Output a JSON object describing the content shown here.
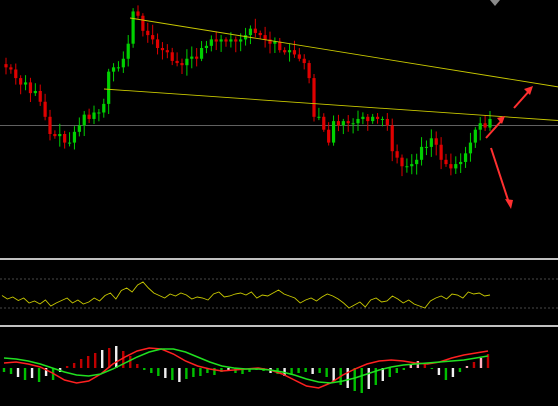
{
  "colors": {
    "background": "#000000",
    "bull": "#00d000",
    "bear": "#e00000",
    "trendline": "#c8c800",
    "panel_separator": "#c0c0c0",
    "reference_line": "#808080",
    "oscillator_line": "#c8c800",
    "signal_red": "#ff2020",
    "signal_green": "#20e020",
    "hist_bull": "#00c000",
    "hist_bear": "#c00000",
    "hist_pale": "#f0f0f0",
    "hist_pink": "#ffb0c0",
    "arrow": "#ff3030"
  },
  "icons": {
    "forecast_up": "arrow-up-right-icon",
    "forecast_down": "arrow-down-right-icon"
  },
  "chart_data": [
    {
      "type": "candlestick",
      "panel": "price",
      "title": "",
      "xlabel": "",
      "ylabel": "",
      "ylim": [
        0,
        100
      ],
      "grid": false,
      "reference_level": 44,
      "closes": [
        71,
        70,
        66,
        63,
        64,
        59,
        60,
        55,
        48,
        40,
        39,
        40,
        36,
        36,
        41,
        44,
        49,
        47,
        50,
        50,
        54,
        69,
        71,
        71,
        75,
        82,
        97,
        95,
        88,
        86,
        84,
        80,
        79,
        78,
        74,
        73,
        72,
        75,
        76,
        75,
        80,
        81,
        84,
        83,
        84,
        83,
        84,
        83,
        84,
        86,
        89,
        87,
        86,
        84,
        82,
        83,
        79,
        78,
        79,
        77,
        75,
        73,
        66,
        48,
        48,
        42,
        36,
        46,
        44,
        46,
        45,
        45,
        47,
        48,
        46,
        48,
        47,
        47,
        44,
        32,
        29,
        25,
        25,
        26,
        28,
        34,
        34,
        38,
        35,
        28,
        26,
        24,
        26,
        27,
        31,
        36,
        42,
        45,
        43,
        47
      ],
      "trendlines": [
        {
          "from": [
            0,
            94
          ],
          "to": [
            140,
            52
          ]
        },
        {
          "from": [
            0,
            64
          ],
          "to": [
            140,
            42
          ]
        }
      ]
    },
    {
      "type": "line",
      "panel": "oscillator",
      "ylim": [
        0,
        100
      ],
      "levels": [
        70,
        30
      ],
      "values": [
        45,
        38,
        42,
        35,
        40,
        30,
        34,
        28,
        36,
        24,
        30,
        35,
        40,
        30,
        36,
        28,
        32,
        40,
        34,
        45,
        50,
        38,
        55,
        60,
        52,
        66,
        72,
        60,
        50,
        45,
        40,
        48,
        44,
        50,
        46,
        38,
        42,
        40,
        36,
        48,
        52,
        42,
        44,
        48,
        50,
        46,
        52,
        40,
        46,
        44,
        50,
        56,
        48,
        44,
        40,
        30,
        36,
        40,
        34,
        42,
        48,
        44,
        38,
        30,
        20,
        26,
        32,
        22,
        36,
        40,
        32,
        34,
        44,
        38,
        30,
        36,
        28,
        24,
        20,
        34,
        40,
        44,
        38,
        48,
        46,
        40,
        52,
        48,
        50,
        44,
        46
      ],
      "series": [
        {
          "name": ""
        }
      ]
    },
    {
      "type": "bar+line",
      "panel": "macd",
      "ylim": [
        -60,
        60
      ],
      "histogram": [
        -8,
        -12,
        -18,
        -24,
        -20,
        -28,
        -16,
        -24,
        -8,
        4,
        10,
        18,
        24,
        30,
        36,
        40,
        44,
        34,
        24,
        8,
        -4,
        -10,
        -16,
        -20,
        -24,
        -28,
        -22,
        -18,
        -16,
        -10,
        -14,
        -8,
        -6,
        -10,
        -12,
        -8,
        -4,
        -6,
        -10,
        -12,
        -16,
        -14,
        -10,
        -8,
        -12,
        -10,
        -18,
        -26,
        -34,
        -40,
        -46,
        -50,
        -42,
        -34,
        -26,
        -18,
        -10,
        -4,
        6,
        14,
        10,
        -2,
        -14,
        -24,
        -18,
        -8,
        4,
        12,
        20,
        28
      ],
      "histogram_style": [
        "bull",
        "bull",
        "pale",
        "bull",
        "pale",
        "bull",
        "pale",
        "bull",
        "pale",
        "bear",
        "bear",
        "bear",
        "bear",
        "bear",
        "pale",
        "bear",
        "pale",
        "bear",
        "bear",
        "bear",
        "bull",
        "bull",
        "bull",
        "pale",
        "bull",
        "pale",
        "bull",
        "bull",
        "bull",
        "bull",
        "bull",
        "bull",
        "pale",
        "bull",
        "bull",
        "bull",
        "bull",
        "bull",
        "pale",
        "bull",
        "pale",
        "bull",
        "bull",
        "bull",
        "pale",
        "bull",
        "bull",
        "pale",
        "bull",
        "pale",
        "bull",
        "bull",
        "pale",
        "bull",
        "pale",
        "bull",
        "bull",
        "bull",
        "pink",
        "pink",
        "bear",
        "bull",
        "pale",
        "bull",
        "pale",
        "bull",
        "pink",
        "bear",
        "pink",
        "bear"
      ],
      "series": [
        {
          "name": "",
          "color_key": "signal_red",
          "values": [
            10,
            12,
            8,
            2,
            -10,
            -24,
            -30,
            -26,
            -12,
            8,
            22,
            34,
            40,
            38,
            28,
            14,
            4,
            -2,
            -6,
            -4,
            -2,
            0,
            -4,
            -12,
            -24,
            -36,
            -40,
            -30,
            -14,
            -2,
            8,
            14,
            16,
            14,
            10,
            8,
            12,
            20,
            26,
            30,
            34
          ]
        },
        {
          "name": "",
          "color_key": "signal_green",
          "values": [
            20,
            18,
            14,
            8,
            0,
            -8,
            -14,
            -16,
            -12,
            -2,
            10,
            22,
            32,
            38,
            38,
            32,
            22,
            12,
            4,
            0,
            -2,
            -2,
            -4,
            -8,
            -14,
            -22,
            -28,
            -30,
            -26,
            -20,
            -12,
            -4,
            2,
            6,
            8,
            10,
            12,
            14,
            16,
            20,
            24
          ]
        }
      ]
    }
  ]
}
